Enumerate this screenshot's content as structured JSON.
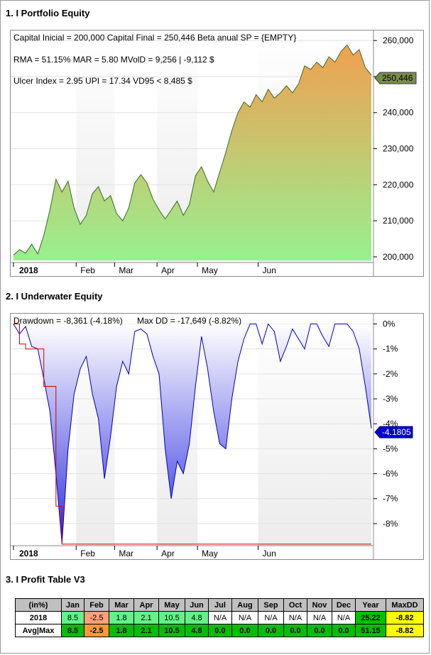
{
  "sections": {
    "equity_title": "1. I Portfolio Equity",
    "underwater_title": "2. I Underwater Equity",
    "profit_title": "3. I Profit Table V3"
  },
  "equity": {
    "info_line1": "Capital Inicial = 200,000  Capital Final = 250,446  Beta anual SP = {EMPTY}",
    "info_line2": "RMA = 51.15%   MAR = 5.80  MVolD = 9,256 | -9,112 $",
    "info_line3": "Ulcer Index = 2.95   UPI = 17.34   VD95 < 8,485 $",
    "last_value_label": "250,446"
  },
  "underwater": {
    "info_drawdown": "Drawdown = -8,361 (-4.18%)",
    "info_maxdd": "Max DD = -17,649 (-8.82%)",
    "last_value_label": "-4.1805"
  },
  "colors": {
    "equity_fill_top": "#f0a050",
    "equity_fill_bottom": "#98f090",
    "underwater_fill_top": "#ffffff",
    "underwater_fill_bottom": "#3030e0",
    "underwater_line": "#0000c0",
    "maxdd_line": "#cc0000",
    "table_green": "#00c000",
    "table_light_green": "#66f088",
    "table_orange": "#ff9a33",
    "table_light_orange": "#ffa077",
    "table_yellow": "#ffff00"
  },
  "chart_data": [
    {
      "type": "area",
      "name_hint": "portfolio-equity",
      "x_ticks": [
        "2018",
        "Feb",
        "Mar",
        "Apr",
        "May",
        "Jun"
      ],
      "y_ticks": [
        "200,000",
        "210,000",
        "220,000",
        "230,000",
        "240,000",
        "250,000",
        "260,000"
      ],
      "ylim": [
        199000,
        262000
      ],
      "x": [
        0,
        3,
        6,
        9,
        12,
        15,
        18,
        21,
        24,
        27,
        30,
        33,
        36,
        39,
        42,
        45,
        48,
        51,
        54,
        57,
        60,
        63,
        66,
        69,
        72,
        75,
        78,
        81,
        84,
        87,
        90,
        93,
        96,
        99,
        102,
        105,
        108,
        111,
        114,
        117,
        120,
        123,
        126,
        129,
        132,
        135,
        138,
        141,
        144,
        147,
        150,
        153,
        156,
        159,
        162,
        165,
        168,
        171,
        174,
        177
      ],
      "values": [
        200500,
        202000,
        201000,
        203500,
        200800,
        206000,
        213000,
        221500,
        218000,
        221000,
        213500,
        209000,
        211500,
        217500,
        219500,
        215500,
        217000,
        212000,
        210000,
        213500,
        220500,
        222800,
        220500,
        216000,
        213000,
        210500,
        213000,
        215500,
        211500,
        214500,
        222500,
        225000,
        221000,
        218000,
        223500,
        229000,
        235000,
        240000,
        243000,
        241500,
        245000,
        243000,
        246500,
        244000,
        245500,
        247500,
        245500,
        248000,
        253000,
        252000,
        254000,
        252500,
        255500,
        254000,
        257000,
        258800,
        256000,
        257500,
        252500,
        250446
      ],
      "grid": true,
      "legend": "none"
    },
    {
      "type": "area",
      "name_hint": "underwater-equity",
      "x_ticks": [
        "2018",
        "Feb",
        "Mar",
        "Apr",
        "May",
        "Jun"
      ],
      "y_ticks": [
        "0%",
        "-1%",
        "-2%",
        "-3%",
        "-4%",
        "-5%",
        "-6%",
        "-7%",
        "-8%"
      ],
      "ylim": [
        -8.8,
        0.3
      ],
      "x": [
        0,
        3,
        6,
        9,
        12,
        15,
        18,
        21,
        24,
        27,
        30,
        33,
        36,
        39,
        42,
        45,
        48,
        51,
        54,
        57,
        60,
        63,
        66,
        69,
        72,
        75,
        78,
        81,
        84,
        87,
        90,
        93,
        96,
        99,
        102,
        105,
        108,
        111,
        114,
        117,
        120,
        123,
        126,
        129,
        132,
        135,
        138,
        141,
        144,
        147,
        150,
        153,
        156,
        159,
        162,
        165,
        168,
        171,
        174,
        177
      ],
      "series": [
        {
          "name": "Drawdown",
          "values": [
            0,
            -0.4,
            -0.1,
            -0.9,
            -1.0,
            -2.2,
            -3.5,
            -6.0,
            -8.8,
            -5.0,
            -2.8,
            -1.8,
            -1.3,
            -2.8,
            -3.8,
            -6.2,
            -4.5,
            -2.5,
            -1.5,
            -2.0,
            -0.3,
            -0.2,
            -0.4,
            -1.3,
            -2.0,
            -5.0,
            -7.0,
            -5.5,
            -6.0,
            -4.8,
            -2.5,
            -0.5,
            -1.8,
            -3.5,
            -4.8,
            -5.0,
            -3.0,
            -1.5,
            -0.6,
            0,
            0,
            -0.8,
            0,
            -0.3,
            -1.5,
            -0.9,
            -0.2,
            -0.6,
            -1.0,
            0,
            0,
            -0.5,
            -0.9,
            0,
            0,
            0,
            -0.3,
            -1.0,
            -2.5,
            -4.18
          ]
        },
        {
          "name": "Max DD",
          "values": [
            0,
            -0.8,
            -1.0,
            -1.0,
            -1.0,
            -2.5,
            -2.5,
            -7.3,
            -8.82,
            -8.82,
            -8.82,
            -8.82,
            -8.82,
            -8.82,
            -8.82,
            -8.82,
            -8.82,
            -8.82,
            -8.82,
            -8.82,
            -8.82,
            -8.82,
            -8.82,
            -8.82,
            -8.82,
            -8.82,
            -8.82,
            -8.82,
            -8.82,
            -8.82,
            -8.82,
            -8.82,
            -8.82,
            -8.82,
            -8.82,
            -8.82,
            -8.82,
            -8.82,
            -8.82,
            -8.82,
            -8.82,
            -8.82,
            -8.82,
            -8.82,
            -8.82,
            -8.82,
            -8.82,
            -8.82,
            -8.82,
            -8.82,
            -8.82,
            -8.82,
            -8.82,
            -8.82,
            -8.82,
            -8.82,
            -8.82,
            -8.82,
            -8.82,
            -8.82
          ]
        }
      ],
      "grid": true,
      "legend": "none"
    },
    {
      "type": "table",
      "columns": [
        "(in%)",
        "Jan",
        "Feb",
        "Mar",
        "Apr",
        "May",
        "Jun",
        "Jul",
        "Aug",
        "Sep",
        "Oct",
        "Nov",
        "Dec",
        "Year",
        "MaxDD"
      ],
      "rows": [
        {
          "label": "2018",
          "cells": [
            "8.5",
            "-2.5",
            "1.8",
            "2.1",
            "10.5",
            "4.8",
            "N/A",
            "N/A",
            "N/A",
            "N/A",
            "N/A",
            "N/A",
            "25.22",
            "-8.82"
          ]
        },
        {
          "label": "Avg|Max",
          "cells": [
            "8.5",
            "-2.5",
            "1.8",
            "2.1",
            "10.5",
            "4.8",
            "0.0",
            "0.0",
            "0.0",
            "0.0",
            "0.0",
            "0.0",
            "51.15",
            "-8.82"
          ]
        }
      ]
    }
  ]
}
